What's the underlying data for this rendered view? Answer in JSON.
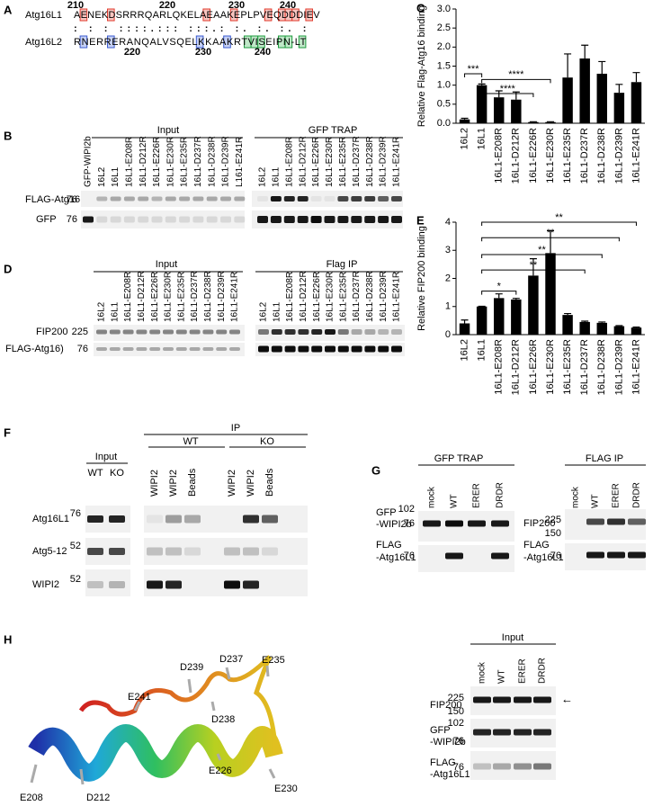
{
  "panel_labels": [
    "A",
    "B",
    "C",
    "D",
    "E",
    "F",
    "G",
    "H"
  ],
  "panel_a": {
    "rows": [
      {
        "name": "Atg16L1",
        "sequence": "AENEKDSRRRQARLQKELAEAAKEPLPVEQDDDIEV"
      },
      {
        "name": "Atg16L2",
        "sequence": "RNERRERANQALVSQELKKAAKRTVISEIPN-LT"
      }
    ],
    "conservation": ": :  :  ::::.::: :::.: :. :.  :. :",
    "numbers_top": [
      "210",
      "220",
      "230",
      "240"
    ],
    "numbers_bottom": [
      "220",
      "230",
      "240"
    ]
  },
  "chart_data": [
    {
      "type": "bar",
      "ylabel": "Relative Flag-Atg16 binding",
      "categories": [
        "16L2",
        "16L1",
        "16L1-E208R",
        "16L1-D212R",
        "16L1-E226R",
        "16L1-E230R",
        "16L1-E235R",
        "16L1-D237R",
        "16L1-D238R",
        "16L1-D239R",
        "16L1-E241R"
      ],
      "series": [
        {
          "color": "#000000",
          "values": [
            0.1,
            1.0,
            0.68,
            0.62,
            0.03,
            0.03,
            1.2,
            1.7,
            1.3,
            0.8,
            1.08
          ],
          "errors": [
            0.03,
            0.03,
            0.17,
            0.2,
            0.01,
            0.01,
            0.62,
            0.35,
            0.32,
            0.22,
            0.25
          ]
        }
      ],
      "ylim": [
        0,
        3
      ],
      "yticks": [
        {
          "value": 0,
          "label": "0.0"
        },
        0.5,
        {
          "value": 1,
          "label": "1.0"
        },
        1.5,
        {
          "value": 2,
          "label": "2.0"
        },
        2.5,
        {
          "value": 3,
          "label": "3.0"
        }
      ],
      "annotations": [
        "***",
        "****",
        "****"
      ]
    },
    {
      "type": "bar",
      "ylabel": "Relative FIP200 binding",
      "categories": [
        "16L2",
        "16L1",
        "16L1-E208R",
        "16L1-D212R",
        "16L1-E226R",
        "16L1-E230R",
        "16L1-E235R",
        "16L1-D237R",
        "16L1-D238R",
        "16L1-D239R",
        "16L1-E241R"
      ],
      "series": [
        {
          "color": "#000000",
          "values": [
            0.4,
            1.0,
            1.3,
            1.25,
            2.1,
            2.9,
            0.7,
            0.45,
            0.42,
            0.3,
            0.25
          ],
          "errors": [
            0.12,
            0.01,
            0.15,
            0.04,
            0.6,
            0.8,
            0.05,
            0.03,
            0.03,
            0.02,
            0.02
          ]
        }
      ],
      "ylim": [
        0,
        4
      ],
      "yticks": [
        0,
        1,
        2,
        3,
        4
      ],
      "annotations": [
        "*",
        "**",
        "**",
        "**",
        "**"
      ]
    }
  ],
  "panel_b": {
    "headers": [
      "Input",
      "GFP TRAP"
    ],
    "lanes_input": [
      "GFP-WIPI2b",
      "16L2",
      "16L1",
      "16L1-E208R",
      "16L1-D212R",
      "16L1-E226R",
      "16L1-E230R",
      "16L1-E235R",
      "16L1-D237R",
      "16L1-D238R",
      "16L1-D239R",
      "L161-E241R"
    ],
    "lanes_trap": [
      "16L2",
      "16L1",
      "16L1-E208R",
      "16L1-D212R",
      "16L1-E226R",
      "16L1-E230R",
      "16L1-E235R",
      "16L1-D237R",
      "16L1-D238R",
      "16L1-D239R",
      "16L1-E241R"
    ],
    "rows": [
      {
        "label": "FLAG-Atg16",
        "marker": "76"
      },
      {
        "label": "GFP",
        "marker": "76"
      }
    ]
  },
  "panel_d": {
    "headers": [
      "Input",
      "Flag IP"
    ],
    "lanes_input": [
      "16L2",
      "16L1",
      "16L1-E208R",
      "16L1-D212R",
      "16L1-E226R",
      "16L1-E230R",
      "16L1-E235R",
      "16L1-D237R",
      "16L1-D238R",
      "16L1-D239R",
      "16L1-E241R"
    ],
    "lanes_ip": [
      "16L2",
      "16L1",
      "16L1-E208R",
      "16L1-D212R",
      "16L1-E226R",
      "16L1-E230R",
      "16L1-E235R",
      "16L1-D237R",
      "16L1-D238R",
      "16L1-D239R",
      "16L1-E241R"
    ],
    "rows": [
      {
        "label": "FIP200",
        "marker": "225"
      },
      {
        "label": "FLAG-Atg16)",
        "marker": "76"
      }
    ]
  },
  "panel_f": {
    "ip_header": "IP",
    "input_header": "Input",
    "input_lanes": [
      "WT",
      "KO"
    ],
    "ip_groups": [
      "WT",
      "KO"
    ],
    "ip_lanes": [
      "WIPI2",
      "WIPI2",
      "Beads",
      "WIPI2",
      "WIPI2",
      "Beads"
    ],
    "rows": [
      {
        "label": "Atg16L1",
        "marker": "76"
      },
      {
        "label": "Atg5-12",
        "marker": "52"
      },
      {
        "label": "WIPI2",
        "marker": "52"
      }
    ]
  },
  "panel_g": {
    "gfp_trap": {
      "header": "GFP TRAP",
      "lanes": [
        "mock",
        "WT",
        "ERER",
        "DRDR"
      ],
      "rows": [
        {
          "label": [
            "GFP",
            "-WIPI2b"
          ],
          "markers": [
            "102",
            "76"
          ]
        },
        {
          "label": [
            "FLAG",
            "-Atg16L1"
          ],
          "markers": [
            "76"
          ]
        }
      ]
    },
    "flag_ip": {
      "header": "FLAG IP",
      "lanes": [
        "mock",
        "WT",
        "ERER",
        "DRDR"
      ],
      "rows": [
        {
          "label": [
            "FIP200"
          ],
          "markers": [
            "225",
            "150"
          ]
        },
        {
          "label": [
            "FLAG",
            "-Atg16L1"
          ],
          "markers": [
            "76"
          ]
        }
      ]
    },
    "input": {
      "header": "Input",
      "lanes": [
        "mock",
        "WT",
        "ERER",
        "DRDR"
      ],
      "arrow": "←",
      "rows": [
        {
          "label": [
            "FIP200"
          ],
          "markers": [
            "225",
            "150"
          ]
        },
        {
          "label": [
            "GFP",
            "-WIPI2b"
          ],
          "markers": [
            "102",
            "76"
          ]
        },
        {
          "label": [
            "FLAG",
            "-Atg16L1"
          ],
          "markers": [
            "76"
          ]
        }
      ]
    }
  },
  "panel_h": {
    "residues": [
      "E208",
      "D212",
      "E226",
      "E230",
      "E235",
      "D237",
      "D238",
      "D239",
      "E241"
    ]
  }
}
